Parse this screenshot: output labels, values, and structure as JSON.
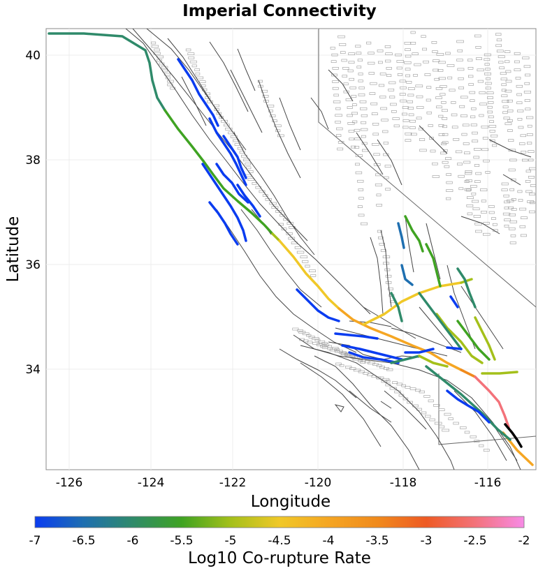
{
  "title": "Imperial Connectivity",
  "map": {
    "xlabel": "Longitude",
    "ylabel": "Latitude",
    "x_ticks": [
      "-126",
      "-124",
      "-122",
      "-120",
      "-118",
      "-116"
    ],
    "y_ticks": [
      "40",
      "38",
      "36",
      "34"
    ],
    "lon_range": [
      -126.5,
      -114.8
    ],
    "lat_range": [
      32.1,
      40.5
    ]
  },
  "colorbar": {
    "label": "Log10 Co-rupture Rate",
    "ticks": [
      "-7",
      "-6.5",
      "-6",
      "-5.5",
      "-5",
      "-4.5",
      "-4",
      "-3.5",
      "-3",
      "-2.5",
      "-2"
    ],
    "range": [
      -7,
      -2
    ],
    "colors": [
      "#0a3cf0",
      "#1e6fb0",
      "#2f8a6a",
      "#3fa322",
      "#a4c01a",
      "#f0c828",
      "#f5a623",
      "#f08a1c",
      "#ee5a24",
      "#f3727a",
      "#f78be6"
    ]
  },
  "target_fault": {
    "name": "Imperial",
    "color": "#000000"
  }
}
